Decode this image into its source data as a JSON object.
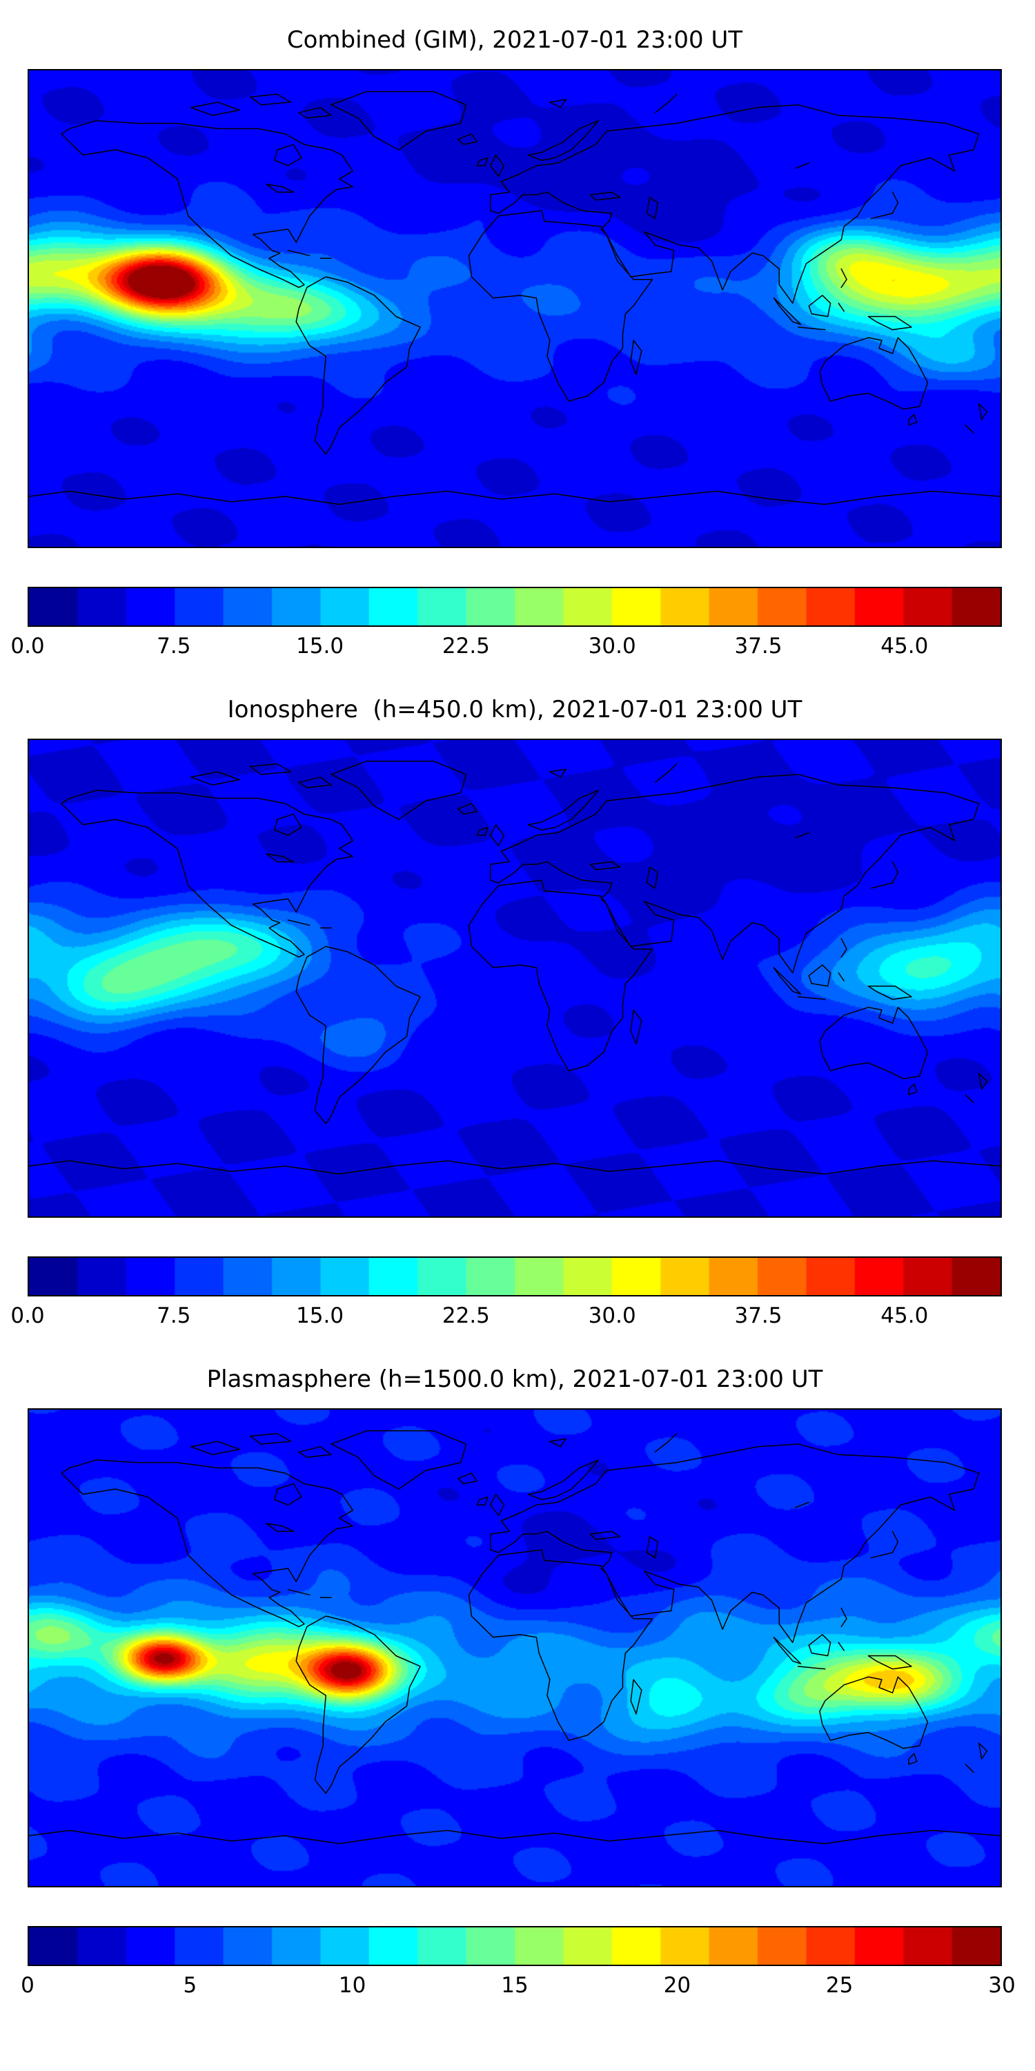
{
  "chart_data": [
    {
      "type": "heatmap",
      "title": "Combined (GIM), 2021-07-01 23:00 UT",
      "vmin": 0,
      "vmax": 50,
      "levels": 20,
      "colorbar_ticks": [
        {
          "value": 0,
          "label": "0.0"
        },
        {
          "value": 7.5,
          "label": "7.5"
        },
        {
          "value": 15,
          "label": "15.0"
        },
        {
          "value": 22.5,
          "label": "22.5"
        },
        {
          "value": 30,
          "label": "30.0"
        },
        {
          "value": 37.5,
          "label": "37.5"
        },
        {
          "value": 45,
          "label": "45.0"
        }
      ],
      "field": {
        "base": 5.5,
        "ripple": 1.3,
        "band": {
          "lat": 8,
          "sigma": 24,
          "amp": 4
        },
        "hotspots": [
          {
            "lon": -132,
            "lat": 11,
            "amp": 40,
            "slon": 16,
            "slat": 8.5
          },
          {
            "lon": -112,
            "lat": 2,
            "amp": 14,
            "slon": 20,
            "slat": 10
          },
          {
            "lon": -75,
            "lat": -2,
            "amp": 13,
            "slon": 18,
            "slat": 9
          },
          {
            "lon": -170,
            "lat": 15,
            "amp": 16,
            "slon": 18,
            "slat": 10
          },
          {
            "lon": 143,
            "lat": 8,
            "amp": 22,
            "slon": 22,
            "slat": 11
          },
          {
            "lon": 120,
            "lat": 20,
            "amp": 10,
            "slon": 15,
            "slat": 8
          },
          {
            "lon": 165,
            "lat": -18,
            "amp": 7,
            "slon": 15,
            "slat": 8
          },
          {
            "lon": 70,
            "lat": 32,
            "amp": -3.5,
            "slon": 30,
            "slat": 12
          },
          {
            "lon": 10,
            "lat": 52,
            "amp": -2.5,
            "slon": 40,
            "slat": 14
          }
        ]
      }
    },
    {
      "type": "heatmap",
      "title": "Ionosphere  (h=450.0 km), 2021-07-01 23:00 UT",
      "vmin": 0,
      "vmax": 50,
      "levels": 20,
      "colorbar_ticks": [
        {
          "value": 0,
          "label": "0.0"
        },
        {
          "value": 7.5,
          "label": "7.5"
        },
        {
          "value": 15,
          "label": "15.0"
        },
        {
          "value": 22.5,
          "label": "22.5"
        },
        {
          "value": 30,
          "label": "30.0"
        },
        {
          "value": 37.5,
          "label": "37.5"
        },
        {
          "value": 45,
          "label": "45.0"
        }
      ],
      "field": {
        "base": 5,
        "ripple": 1.1,
        "band": {
          "lat": 5,
          "sigma": 22,
          "amp": 3
        },
        "hotspots": [
          {
            "lon": -130,
            "lat": 5,
            "amp": 15,
            "slon": 26,
            "slat": 11
          },
          {
            "lon": -155,
            "lat": -8,
            "amp": 8,
            "slon": 15,
            "slat": 8
          },
          {
            "lon": -100,
            "lat": 15,
            "amp": 8,
            "slon": 18,
            "slat": 9
          },
          {
            "lon": 148,
            "lat": 3,
            "amp": 13,
            "slon": 20,
            "slat": 10
          },
          {
            "lon": -60,
            "lat": -22,
            "amp": 5,
            "slon": 15,
            "slat": 8
          },
          {
            "lon": 175,
            "lat": 20,
            "amp": 6,
            "slon": 14,
            "slat": 8
          },
          {
            "lon": 30,
            "lat": 10,
            "amp": -3,
            "slon": 35,
            "slat": 20
          },
          {
            "lon": 90,
            "lat": 45,
            "amp": -2,
            "slon": 30,
            "slat": 14
          }
        ]
      }
    },
    {
      "type": "heatmap",
      "title": "Plasmasphere (h=1500.0 km), 2021-07-01 23:00 UT",
      "vmin": 0,
      "vmax": 30,
      "levels": 20,
      "colorbar_ticks": [
        {
          "value": 0,
          "label": "0"
        },
        {
          "value": 5,
          "label": "5"
        },
        {
          "value": 10,
          "label": "10"
        },
        {
          "value": 15,
          "label": "15"
        },
        {
          "value": 20,
          "label": "20"
        },
        {
          "value": 25,
          "label": "25"
        },
        {
          "value": 30,
          "label": "30"
        }
      ],
      "field": {
        "base": 4,
        "ripple": 1.0,
        "band": {
          "lat": -6,
          "sigma": 20,
          "amp": 5
        },
        "hotspots": [
          {
            "lon": -130,
            "lat": -4,
            "amp": 19,
            "slon": 11,
            "slat": 6.5
          },
          {
            "lon": -62,
            "lat": -9,
            "amp": 21,
            "slon": 12,
            "slat": 7.5
          },
          {
            "lon": -95,
            "lat": -5,
            "amp": 9,
            "slon": 16,
            "slat": 9
          },
          {
            "lon": -170,
            "lat": 5,
            "amp": 7,
            "slon": 14,
            "slat": 8
          },
          {
            "lon": 140,
            "lat": -12,
            "amp": 11,
            "slon": 16,
            "slat": 8
          },
          {
            "lon": 112,
            "lat": -18,
            "amp": 6,
            "slon": 14,
            "slat": 8
          },
          {
            "lon": 60,
            "lat": -25,
            "amp": 4,
            "slon": 14,
            "slat": 8
          },
          {
            "lon": 20,
            "lat": 22,
            "amp": -2.5,
            "slon": 30,
            "slat": 18
          }
        ]
      }
    }
  ]
}
